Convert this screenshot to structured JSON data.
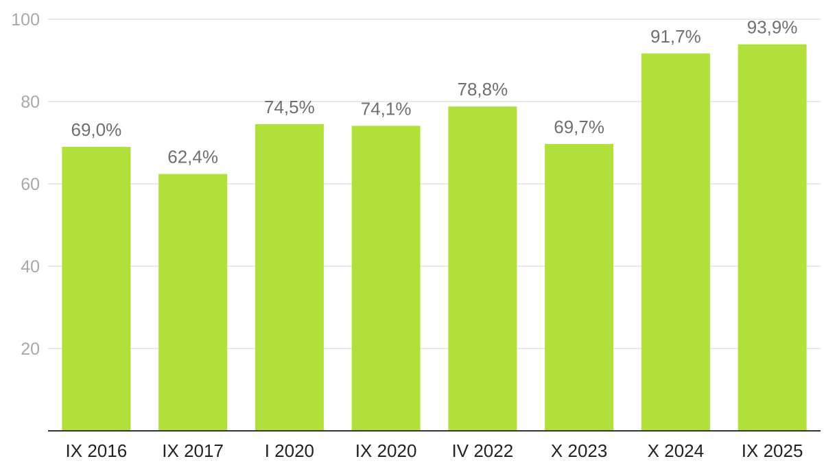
{
  "chart_data": {
    "type": "bar",
    "title": "",
    "xlabel": "",
    "ylabel": "",
    "categories": [
      "IX 2016",
      "IX 2017",
      "I 2020",
      "IX 2020",
      "IV 2022",
      "X 2023",
      "X 2024",
      "IX 2025"
    ],
    "values": [
      69.0,
      62.4,
      74.5,
      74.1,
      78.8,
      69.7,
      91.7,
      93.9
    ],
    "data_labels": [
      "69,0%",
      "62,4%",
      "74,5%",
      "74,1%",
      "78,8%",
      "69,7%",
      "91,7%",
      "93,9%"
    ],
    "ylim": [
      0,
      100
    ],
    "yticks": [
      20,
      40,
      60,
      80,
      100
    ],
    "ytick_labels": [
      "20",
      "40",
      "60",
      "80",
      "100"
    ],
    "grid": true,
    "legend": "none",
    "colors": {
      "bar": "#b2e03a"
    }
  }
}
